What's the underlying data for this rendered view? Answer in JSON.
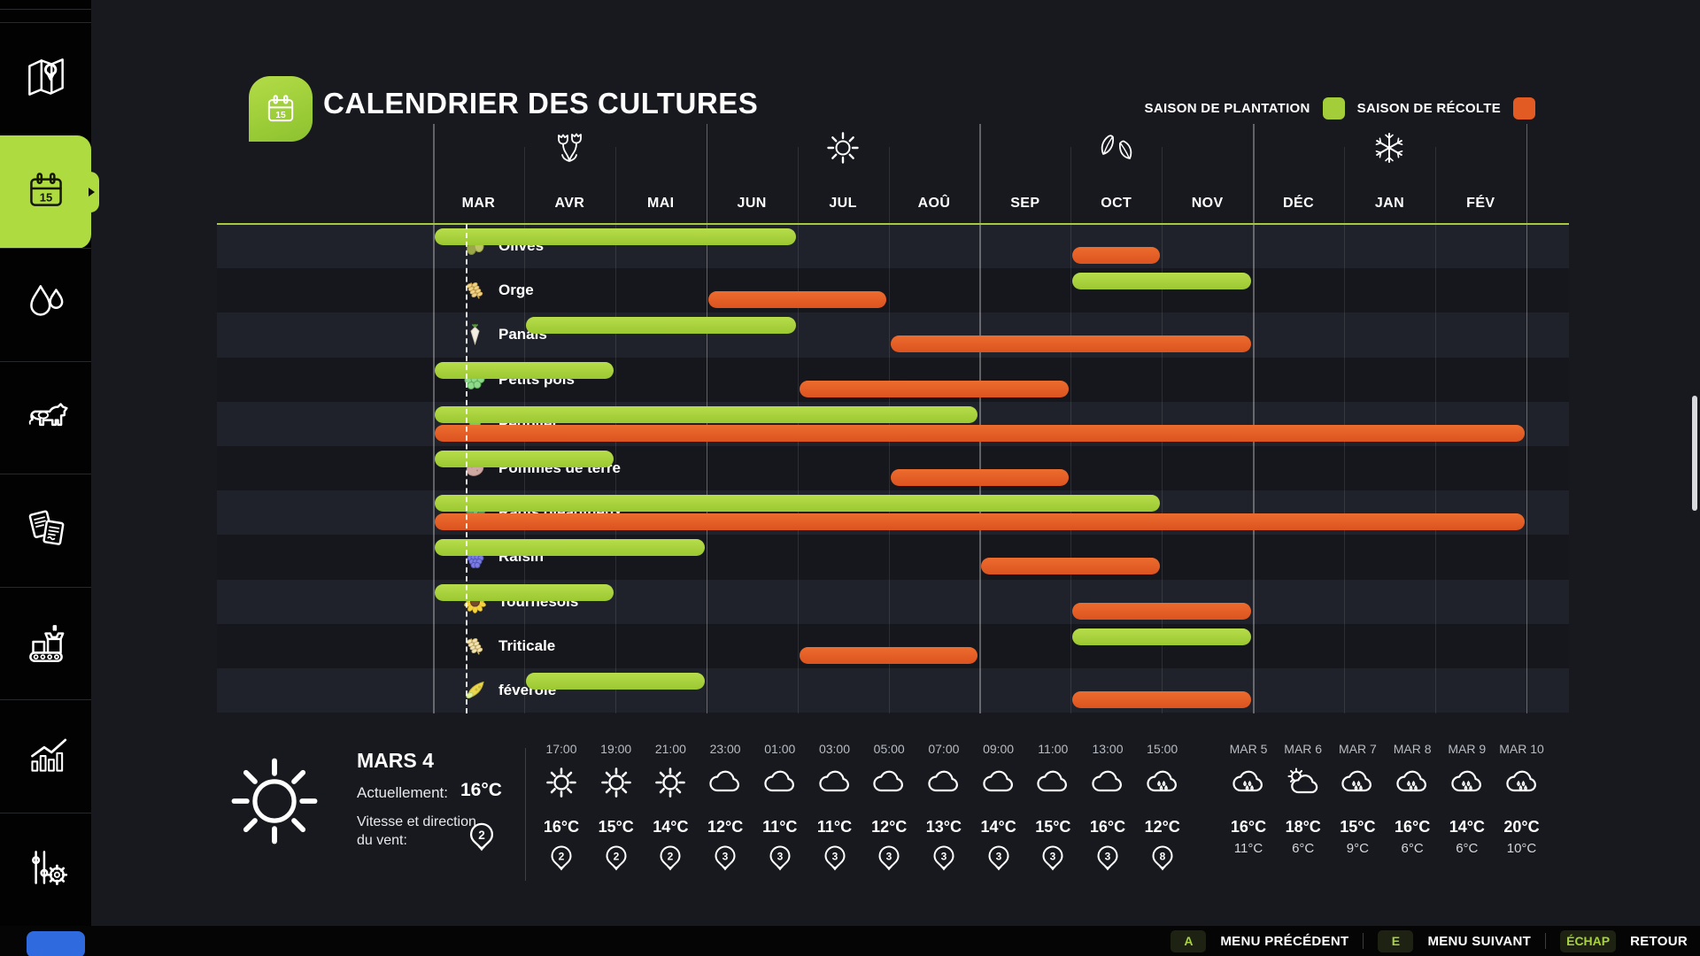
{
  "app": {
    "title": "CALENDRIER DES CULTURES"
  },
  "colors": {
    "accent_green": "#a4ce39",
    "accent_orange": "#e15b22"
  },
  "legend": {
    "planting_label": "SAISON DE PLANTATION",
    "harvest_label": "SAISON DE RÉCOLTE"
  },
  "months": [
    "MAR",
    "AVR",
    "MAI",
    "JUN",
    "JUL",
    "AOÛ",
    "SEP",
    "OCT",
    "NOV",
    "DÉC",
    "JAN",
    "FÉV"
  ],
  "seasons": [
    {
      "name": "spring",
      "month_index": 1
    },
    {
      "name": "summer",
      "month_index": 4
    },
    {
      "name": "autumn",
      "month_index": 7
    },
    {
      "name": "winter",
      "month_index": 10
    }
  ],
  "chart_data": {
    "type": "table",
    "note": "Gantt crop calendar; month indices 0=MAR .. 11=FÉV",
    "crops": [
      {
        "name": "Olives",
        "icon": "olives",
        "plant": [
          0,
          3
        ],
        "harvest": [
          7,
          7
        ]
      },
      {
        "name": "Orge",
        "icon": "barley",
        "plant": [
          7,
          8
        ],
        "harvest": [
          3,
          4
        ]
      },
      {
        "name": "Panais",
        "icon": "parsnip",
        "plant": [
          1,
          3
        ],
        "harvest": [
          5,
          8
        ]
      },
      {
        "name": "Petits pois",
        "icon": "peas",
        "plant": [
          0,
          1
        ],
        "harvest": [
          4,
          6
        ]
      },
      {
        "name": "Peuplier",
        "icon": "poplar",
        "plant": [
          0,
          5
        ],
        "harvest": [
          0,
          11
        ]
      },
      {
        "name": "Pommes de terre",
        "icon": "potato",
        "plant": [
          0,
          1
        ],
        "harvest": [
          5,
          6
        ]
      },
      {
        "name": "Radis oléagineux",
        "icon": "oilseed-radish",
        "plant": [
          0,
          7
        ],
        "harvest": [
          0,
          11
        ]
      },
      {
        "name": "Raisin",
        "icon": "grapes",
        "plant": [
          0,
          2
        ],
        "harvest": [
          6,
          7
        ]
      },
      {
        "name": "Tournesols",
        "icon": "sunflower",
        "plant": [
          0,
          1
        ],
        "harvest": [
          7,
          8
        ]
      },
      {
        "name": "Triticale",
        "icon": "triticale",
        "plant": [
          7,
          8
        ],
        "harvest": [
          4,
          5
        ]
      },
      {
        "name": "féverole",
        "icon": "faba-bean",
        "plant": [
          1,
          2
        ],
        "harvest": [
          7,
          8
        ]
      }
    ],
    "current_date_marker": {
      "month_index": 0,
      "fraction": 0.36
    }
  },
  "weather": {
    "date": "MARS 4",
    "current_label": "Actuellement:",
    "current_value": "16°C",
    "wind_label": "Vitesse et direction du vent:",
    "wind_value": "2",
    "hourly": [
      {
        "time": "17:00",
        "icon": "sun",
        "temp": "16°C",
        "wind": "2"
      },
      {
        "time": "19:00",
        "icon": "sun",
        "temp": "15°C",
        "wind": "2"
      },
      {
        "time": "21:00",
        "icon": "sun",
        "temp": "14°C",
        "wind": "2"
      },
      {
        "time": "23:00",
        "icon": "cloud",
        "temp": "12°C",
        "wind": "3"
      },
      {
        "time": "01:00",
        "icon": "cloud",
        "temp": "11°C",
        "wind": "3"
      },
      {
        "time": "03:00",
        "icon": "cloud",
        "temp": "11°C",
        "wind": "3"
      },
      {
        "time": "05:00",
        "icon": "cloud",
        "temp": "12°C",
        "wind": "3"
      },
      {
        "time": "07:00",
        "icon": "cloud",
        "temp": "13°C",
        "wind": "3"
      },
      {
        "time": "09:00",
        "icon": "cloud",
        "temp": "14°C",
        "wind": "3"
      },
      {
        "time": "11:00",
        "icon": "cloud",
        "temp": "15°C",
        "wind": "3"
      },
      {
        "time": "13:00",
        "icon": "cloud",
        "temp": "16°C",
        "wind": "3"
      },
      {
        "time": "15:00",
        "icon": "rain",
        "temp": "12°C",
        "wind": "8"
      }
    ],
    "daily": [
      {
        "day": "MAR 5",
        "icon": "rain",
        "high": "16°C",
        "low": "11°C"
      },
      {
        "day": "MAR 6",
        "icon": "partly",
        "high": "18°C",
        "low": "6°C"
      },
      {
        "day": "MAR 7",
        "icon": "rain",
        "high": "15°C",
        "low": "9°C"
      },
      {
        "day": "MAR 8",
        "icon": "rain",
        "high": "16°C",
        "low": "6°C"
      },
      {
        "day": "MAR 9",
        "icon": "rain",
        "high": "14°C",
        "low": "6°C"
      },
      {
        "day": "MAR 10",
        "icon": "rain",
        "high": "20°C",
        "low": "10°C"
      }
    ]
  },
  "menu_bar": [
    {
      "key": "A",
      "label": "MENU PRÉCÉDENT"
    },
    {
      "key": "E",
      "label": "MENU SUIVANT"
    },
    {
      "key": "ÉCHAP",
      "label": "RETOUR"
    }
  ],
  "sidebar": {
    "items": [
      {
        "name": "map"
      },
      {
        "name": "calendar",
        "active": true
      },
      {
        "name": "water"
      },
      {
        "name": "animals"
      },
      {
        "name": "contracts"
      },
      {
        "name": "production"
      },
      {
        "name": "statistics"
      },
      {
        "name": "settings"
      }
    ]
  }
}
